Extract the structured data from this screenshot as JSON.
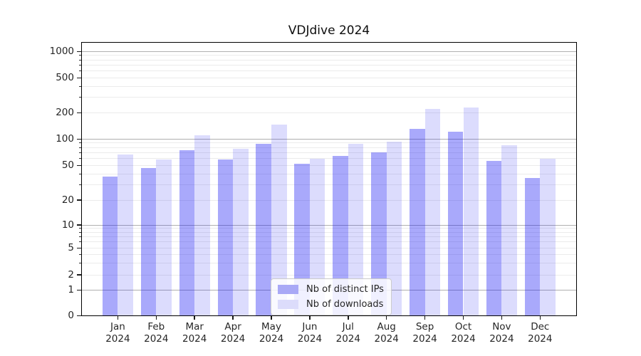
{
  "title": "VDJdive 2024",
  "chart_data": {
    "type": "bar",
    "title": "VDJdive 2024",
    "categories": [
      "Jan",
      "Feb",
      "Mar",
      "Apr",
      "May",
      "Jun",
      "Jul",
      "Aug",
      "Sep",
      "Oct",
      "Nov",
      "Dec"
    ],
    "category_year": "2024",
    "series": [
      {
        "name": "Nb of distinct IPs",
        "color": "rgba(16,16,244,0.36)",
        "legend_color": "#a9a9f6",
        "values": [
          37,
          47,
          74,
          58,
          88,
          52,
          64,
          70,
          130,
          121,
          56,
          36
        ]
      },
      {
        "name": "Nb of downloads",
        "color": "rgba(16,16,244,0.145)",
        "legend_color": "#dcdcfb",
        "values": [
          67,
          58,
          110,
          77,
          147,
          60,
          89,
          93,
          220,
          228,
          85,
          60
        ]
      }
    ],
    "y_axis": {
      "scale": "symlog",
      "ticks": [
        0,
        1,
        2,
        5,
        10,
        20,
        50,
        100,
        200,
        500,
        1000
      ],
      "major_gridline_values": [
        1,
        10,
        100,
        1000
      ],
      "ylim": [
        0,
        1300
      ]
    },
    "x_axis": {
      "tick_labels_line1": [
        "Jan",
        "Feb",
        "Mar",
        "Apr",
        "May",
        "Jun",
        "Jul",
        "Aug",
        "Sep",
        "Oct",
        "Nov",
        "Dec"
      ],
      "tick_labels_line2": "2024"
    },
    "legend": {
      "position": "lower-center-inside",
      "entries": [
        "Nb of distinct IPs",
        "Nb of downloads"
      ]
    },
    "grid": {
      "enabled": true,
      "major_color": "#b0b0b0",
      "minor_color": "#ebebeb"
    }
  },
  "colors": {
    "background": "#ffffff",
    "spine": "#000000",
    "tick_text": "#262626",
    "legend_border": "#cccccc"
  }
}
